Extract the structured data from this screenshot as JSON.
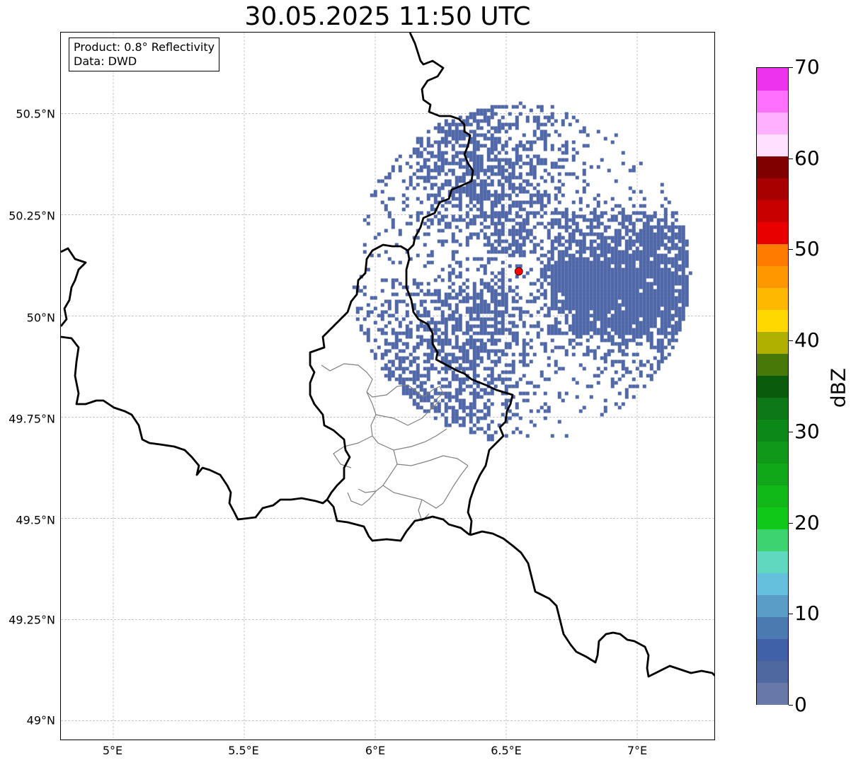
{
  "title": "30.05.2025 11:50 UTC",
  "info": {
    "product": "Product: 0.8° Reflectivity",
    "source": "Data: DWD"
  },
  "map": {
    "lon_range": [
      4.8,
      7.3
    ],
    "lat_range": [
      48.95,
      50.7
    ],
    "radar_site": {
      "lon": 6.548,
      "lat": 50.11,
      "color": "#ff0000"
    },
    "lat_ticks": [
      "50.5°N",
      "50.25°N",
      "50°N",
      "49.75°N",
      "49.5°N",
      "49.25°N",
      "49°N"
    ],
    "lon_ticks": [
      "5°E",
      "5.5°E",
      "6°E",
      "6.5°E",
      "7°E"
    ],
    "grid": true,
    "echo_color": "#5068a8"
  },
  "colorbar": {
    "label": "dBZ",
    "ticks": [
      "0",
      "10",
      "20",
      "30",
      "40",
      "50",
      "60",
      "70"
    ],
    "range": [
      0,
      70
    ],
    "colors": [
      "#6878a8",
      "#5068a0",
      "#4060a8",
      "#4a7ab0",
      "#5a9ec8",
      "#64c0dc",
      "#60d8c0",
      "#3cd470",
      "#10c818",
      "#10b818",
      "#10a818",
      "#109818",
      "#0c8818",
      "#0c7818",
      "#0a5c0c",
      "#487808",
      "#b0b000",
      "#ffd800",
      "#ffb800",
      "#ff9800",
      "#ff7c00",
      "#e80000",
      "#c80000",
      "#a80000",
      "#800000",
      "#ffe0ff",
      "#ffb0ff",
      "#ff70ff",
      "#ee33ee"
    ]
  }
}
